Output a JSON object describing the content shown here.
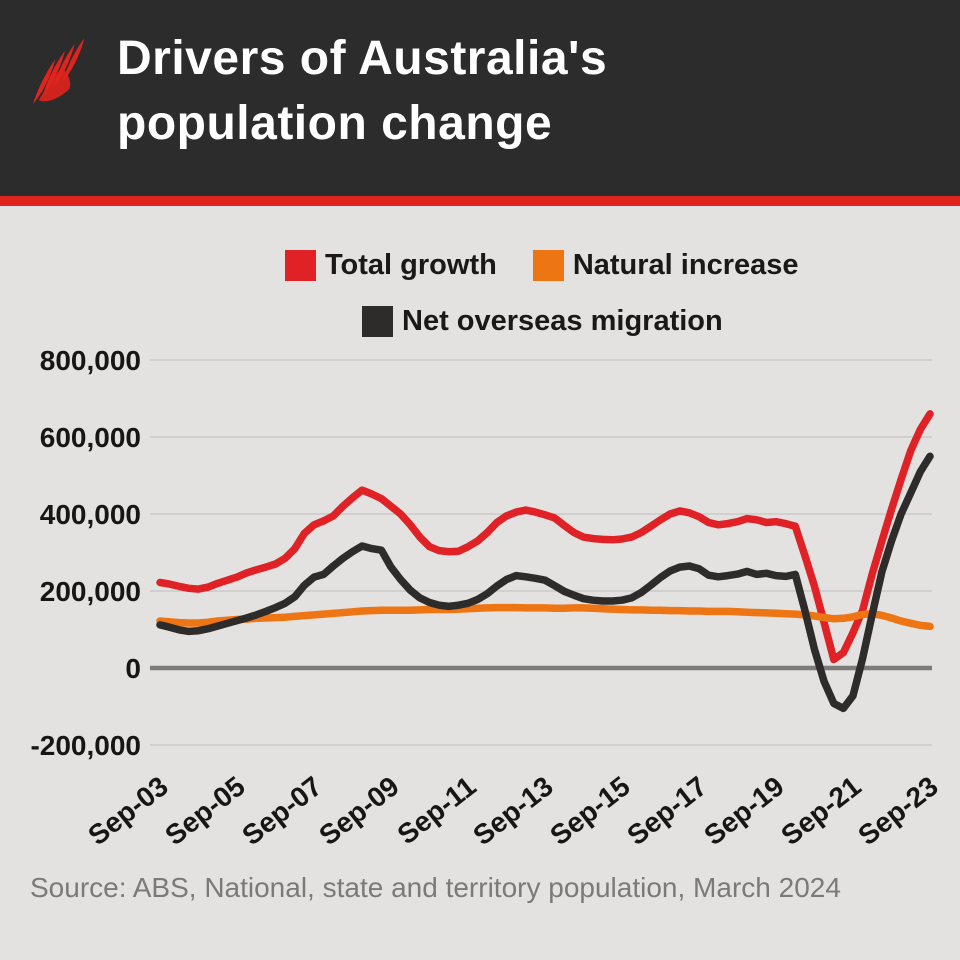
{
  "header": {
    "title_line1": "Drivers of Australia's",
    "title_line2": "population change",
    "logo": "sbs-mercator-logo"
  },
  "legend": [
    {
      "label": "Total growth",
      "color": "#e02227"
    },
    {
      "label": "Natural increase",
      "color": "#ee7514"
    },
    {
      "label": "Net overseas migration",
      "color": "#2e2b2b"
    }
  ],
  "source": "Source: ABS, National, state and territory population, March 2024",
  "colors": {
    "page_background": "#e3e2e0",
    "header_background": "#2d2c2c",
    "accent_stripe": "#e1231d",
    "gridline": "#cac9c7",
    "zero_line": "#7c7c7c",
    "axis_text": "#161616",
    "source_text": "#7b7a78",
    "title_text": "#ffffff"
  },
  "chart_data": {
    "type": "line",
    "title": "Drivers of Australia's population change",
    "xlabel": "",
    "ylabel": "",
    "unit": "persons per year (annual change), series values in thousands",
    "x_points": "quarterly, year ending Sep-2003 through Sep-2023 (81 points)",
    "x_start": "Sep-03",
    "x_end": "Sep-23",
    "x_tick_labels": [
      "Sep-03",
      "Sep-05",
      "Sep-07",
      "Sep-09",
      "Sep-11",
      "Sep-13",
      "Sep-15",
      "Sep-17",
      "Sep-19",
      "Sep-21",
      "Sep-23"
    ],
    "x_tick_indices": [
      0,
      8,
      16,
      24,
      32,
      40,
      48,
      56,
      64,
      72,
      80
    ],
    "y_ticks": [
      {
        "value": 800000,
        "label": "800,000"
      },
      {
        "value": 600000,
        "label": "600,000"
      },
      {
        "value": 400000,
        "label": "400,000"
      },
      {
        "value": 200000,
        "label": "200,000"
      },
      {
        "value": 0,
        "label": "0"
      },
      {
        "value": -200000,
        "label": "-200,000"
      }
    ],
    "ylim": [
      -200000,
      800000
    ],
    "grid": "horizontal only",
    "legend_position": "top center, two rows",
    "series": [
      {
        "name": "Total growth",
        "color": "#e02227",
        "values_thousands": [
          222,
          218,
          212,
          207,
          205,
          210,
          220,
          228,
          236,
          247,
          255,
          262,
          270,
          285,
          310,
          350,
          372,
          382,
          395,
          420,
          442,
          462,
          452,
          440,
          420,
          400,
          372,
          340,
          315,
          305,
          302,
          303,
          315,
          330,
          352,
          378,
          395,
          405,
          410,
          405,
          398,
          390,
          370,
          352,
          340,
          336,
          334,
          333,
          335,
          340,
          352,
          368,
          385,
          400,
          408,
          403,
          393,
          378,
          372,
          375,
          380,
          388,
          385,
          378,
          380,
          375,
          368,
          292,
          212,
          118,
          22,
          40,
          92,
          150,
          245,
          330,
          412,
          490,
          565,
          620,
          660
        ]
      },
      {
        "name": "Natural increase",
        "color": "#ee7514",
        "values_thousands": [
          122,
          120,
          118,
          117,
          117,
          119,
          122,
          124,
          126,
          127,
          129,
          130,
          131,
          132,
          134,
          136,
          138,
          140,
          142,
          144,
          146,
          148,
          149,
          150,
          150,
          150,
          150,
          151,
          152,
          152,
          152,
          153,
          154,
          155,
          156,
          157,
          157,
          157,
          156,
          156,
          156,
          155,
          155,
          156,
          156,
          155,
          154,
          153,
          152,
          151,
          151,
          150,
          150,
          149,
          149,
          148,
          148,
          147,
          147,
          147,
          146,
          145,
          144,
          143,
          142,
          141,
          140,
          138,
          135,
          131,
          128,
          129,
          133,
          139,
          141,
          137,
          130,
          122,
          116,
          111,
          108
        ]
      },
      {
        "name": "Net overseas migration",
        "color": "#2e2b2b",
        "values_thousands": [
          112,
          106,
          99,
          95,
          97,
          102,
          109,
          116,
          123,
          130,
          138,
          147,
          157,
          168,
          185,
          215,
          236,
          243,
          265,
          285,
          302,
          317,
          310,
          306,
          262,
          230,
          202,
          182,
          170,
          163,
          160,
          163,
          168,
          178,
          193,
          213,
          230,
          240,
          237,
          233,
          228,
          214,
          199,
          189,
          180,
          176,
          174,
          174,
          176,
          182,
          196,
          215,
          235,
          252,
          262,
          265,
          258,
          241,
          237,
          240,
          244,
          251,
          243,
          246,
          240,
          238,
          243,
          150,
          48,
          -35,
          -92,
          -105,
          -72,
          25,
          140,
          250,
          330,
          400,
          455,
          510,
          550
        ]
      }
    ]
  }
}
